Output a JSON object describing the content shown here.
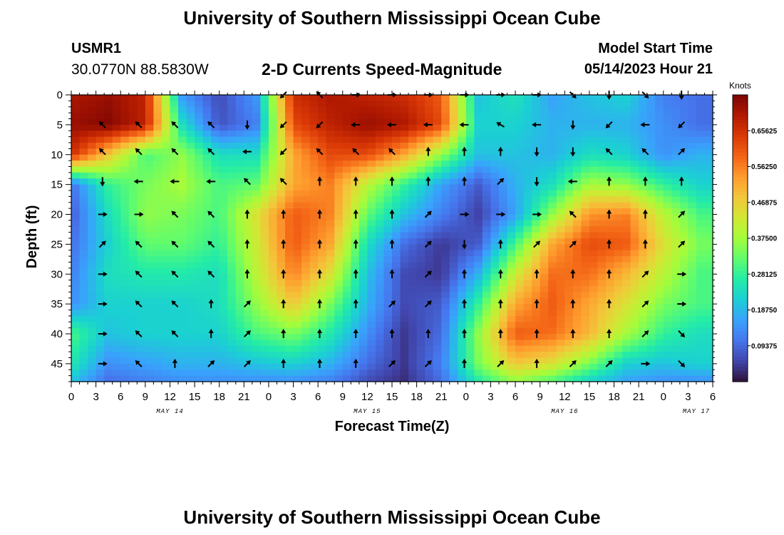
{
  "header": {
    "title": "University of Southern Mississippi Ocean Cube",
    "station_id": "USMR1",
    "station_coords": "30.0770N  88.5830W",
    "plot_title": "2-D Currents Speed-Magnitude",
    "model_start_label": "Model Start Time",
    "model_start_value": "05/14/2023 Hour 21"
  },
  "footer": {
    "title": "University of Southern Mississippi Ocean Cube"
  },
  "chart_data": {
    "type": "heatmap",
    "title": "2-D Currents Speed-Magnitude",
    "xlabel": "Forecast Time(Z)",
    "ylabel": "Depth (ft)",
    "x_tick_labels": [
      "0",
      "3",
      "6",
      "9",
      "12",
      "15",
      "18",
      "21",
      "0",
      "3",
      "6",
      "9",
      "12",
      "15",
      "18",
      "21",
      "0",
      "3",
      "6",
      "9",
      "12",
      "15",
      "18",
      "21",
      "0",
      "3",
      "6"
    ],
    "date_labels": [
      {
        "label": "MAY 14",
        "hour": 12
      },
      {
        "label": "MAY 15",
        "hour": 36
      },
      {
        "label": "MAY 16",
        "hour": 60
      },
      {
        "label": "MAY 17",
        "hour": 76
      }
    ],
    "x_range_hours": [
      0,
      78
    ],
    "y_ticks": [
      0,
      5,
      10,
      15,
      20,
      25,
      30,
      35,
      40,
      45
    ],
    "y_range": [
      0,
      48
    ],
    "y_inverted": true,
    "colorbar": {
      "unit": "Knots",
      "range": [
        0,
        0.75
      ],
      "tick_values": [
        0.65625,
        0.5625,
        0.46875,
        0.375,
        0.28125,
        0.1875,
        0.09375
      ],
      "tick_labels": [
        "0.65625",
        "0.56250",
        "0.46875",
        "0.37500",
        "0.28125",
        "0.18750",
        "0.09375"
      ]
    },
    "colors": [
      "#30123b",
      "#4145ab",
      "#4675ed",
      "#39a2fc",
      "#1bcfd4",
      "#24eca6",
      "#61fc6c",
      "#a4fc3b",
      "#d1e834",
      "#f3c63a",
      "#fe9b2d",
      "#f36315",
      "#d93806",
      "#b11901",
      "#7a0403"
    ],
    "speed_hours": [
      0,
      4.5,
      9,
      13.5,
      18,
      22.5,
      27,
      31.5,
      36,
      40.5,
      45,
      49.5,
      54,
      58.5,
      63,
      67.5,
      72,
      76.5
    ],
    "speed_depths": [
      0,
      5,
      10,
      15,
      20,
      25,
      30,
      35,
      40,
      45,
      48
    ],
    "speed_knots": [
      [
        0.7,
        0.72,
        0.68,
        0.15,
        0.06,
        0.15,
        0.66,
        0.7,
        0.68,
        0.66,
        0.6,
        0.2,
        0.25,
        0.16,
        0.2,
        0.22,
        0.12,
        0.1
      ],
      [
        0.72,
        0.74,
        0.68,
        0.24,
        0.07,
        0.12,
        0.62,
        0.68,
        0.72,
        0.7,
        0.62,
        0.22,
        0.22,
        0.18,
        0.18,
        0.18,
        0.14,
        0.1
      ],
      [
        0.66,
        0.48,
        0.3,
        0.36,
        0.24,
        0.24,
        0.52,
        0.62,
        0.62,
        0.52,
        0.36,
        0.2,
        0.2,
        0.18,
        0.24,
        0.22,
        0.14,
        0.18
      ],
      [
        0.1,
        0.28,
        0.34,
        0.38,
        0.3,
        0.32,
        0.52,
        0.56,
        0.4,
        0.28,
        0.16,
        0.08,
        0.18,
        0.24,
        0.38,
        0.36,
        0.28,
        0.22
      ],
      [
        0.08,
        0.24,
        0.36,
        0.34,
        0.3,
        0.44,
        0.6,
        0.56,
        0.32,
        0.2,
        0.12,
        0.05,
        0.16,
        0.36,
        0.54,
        0.56,
        0.4,
        0.3
      ],
      [
        0.1,
        0.22,
        0.32,
        0.32,
        0.28,
        0.42,
        0.6,
        0.52,
        0.24,
        0.1,
        0.04,
        0.08,
        0.3,
        0.52,
        0.62,
        0.6,
        0.44,
        0.34
      ],
      [
        0.12,
        0.24,
        0.26,
        0.26,
        0.24,
        0.4,
        0.56,
        0.44,
        0.2,
        0.06,
        0.04,
        0.18,
        0.42,
        0.58,
        0.58,
        0.5,
        0.4,
        0.3
      ],
      [
        0.14,
        0.22,
        0.22,
        0.22,
        0.24,
        0.36,
        0.48,
        0.34,
        0.18,
        0.06,
        0.08,
        0.28,
        0.52,
        0.6,
        0.52,
        0.44,
        0.34,
        0.3
      ],
      [
        0.3,
        0.2,
        0.22,
        0.22,
        0.22,
        0.3,
        0.34,
        0.26,
        0.14,
        0.04,
        0.1,
        0.36,
        0.6,
        0.58,
        0.5,
        0.38,
        0.28,
        0.24
      ],
      [
        0.26,
        0.14,
        0.16,
        0.18,
        0.18,
        0.2,
        0.22,
        0.18,
        0.1,
        0.04,
        0.12,
        0.34,
        0.48,
        0.44,
        0.34,
        0.22,
        0.2,
        0.22
      ],
      [
        0.2,
        0.1,
        0.12,
        0.14,
        0.14,
        0.14,
        0.14,
        0.12,
        0.06,
        0.03,
        0.1,
        0.26,
        0.36,
        0.3,
        0.22,
        0.16,
        0.14,
        0.14
      ]
    ],
    "arrows": {
      "hours": [
        3.8,
        8.2,
        12.6,
        17,
        21.4,
        25.8,
        30.2,
        34.6,
        39,
        43.4,
        47.8,
        52.2,
        56.6,
        61,
        65.4,
        69.8,
        74.2
      ],
      "depths": [
        0,
        5,
        9.5,
        14.5,
        20,
        25,
        30,
        35,
        40,
        45
      ],
      "directions_deg": [
        [
          null,
          null,
          null,
          null,
          null,
          225,
          315,
          90,
          90,
          90,
          90,
          90,
          90,
          135,
          180,
          135,
          180
        ],
        [
          315,
          315,
          315,
          315,
          180,
          225,
          225,
          270,
          270,
          270,
          270,
          300,
          270,
          180,
          225,
          270,
          225
        ],
        [
          315,
          315,
          315,
          315,
          270,
          225,
          315,
          315,
          315,
          0,
          0,
          0,
          180,
          180,
          315,
          315,
          45
        ],
        [
          180,
          270,
          270,
          270,
          315,
          315,
          0,
          0,
          0,
          0,
          0,
          45,
          180,
          270,
          0,
          0,
          0
        ],
        [
          90,
          90,
          315,
          315,
          0,
          0,
          0,
          0,
          0,
          45,
          90,
          90,
          90,
          315,
          0,
          0,
          45
        ],
        [
          45,
          315,
          315,
          315,
          0,
          0,
          0,
          0,
          0,
          45,
          180,
          0,
          45,
          45,
          0,
          0,
          45
        ],
        [
          90,
          315,
          315,
          315,
          0,
          0,
          0,
          0,
          0,
          45,
          0,
          0,
          0,
          0,
          0,
          45,
          90
        ],
        [
          90,
          315,
          315,
          0,
          45,
          0,
          0,
          0,
          45,
          45,
          0,
          0,
          0,
          0,
          0,
          45,
          90
        ],
        [
          90,
          315,
          315,
          0,
          45,
          0,
          0,
          0,
          0,
          0,
          0,
          0,
          0,
          0,
          0,
          45,
          135
        ],
        [
          90,
          315,
          0,
          45,
          45,
          0,
          0,
          0,
          45,
          45,
          0,
          45,
          0,
          45,
          45,
          90,
          135
        ]
      ]
    }
  }
}
